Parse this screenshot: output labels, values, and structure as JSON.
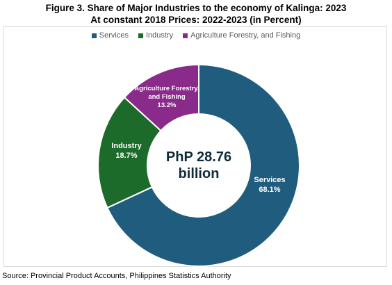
{
  "title_line1": "Figure 3. Share of Major Industries to the economy of Kalinga: 2023",
  "title_line2": "At constant 2018 Prices: 2022-2023 (in Percent)",
  "center_label_line1": "PhP 28.76",
  "center_label_line2": "billion",
  "source": "Source: Provincial Product Accounts, Philippines Statistics Authority",
  "chart_data": {
    "type": "pie",
    "variant": "donut",
    "legend_position": "top",
    "slices": [
      {
        "name": "Services",
        "value": 68.1,
        "label": "68.1%",
        "color": "#1f5c7d"
      },
      {
        "name": "Industry",
        "value": 18.7,
        "label": "18.7%",
        "color": "#1d6b2a"
      },
      {
        "name": "Agriculture Forestry, and Fishing",
        "value": 13.2,
        "label": "13.2%",
        "color": "#8a2a8a"
      }
    ],
    "slice_labels": [
      {
        "lines": [
          "Services",
          "68.1%"
        ]
      },
      {
        "lines": [
          "Industry",
          "18.7%"
        ]
      },
      {
        "lines": [
          "Agriculture Forestry,",
          "and Fishing",
          "13.2%"
        ]
      }
    ]
  }
}
